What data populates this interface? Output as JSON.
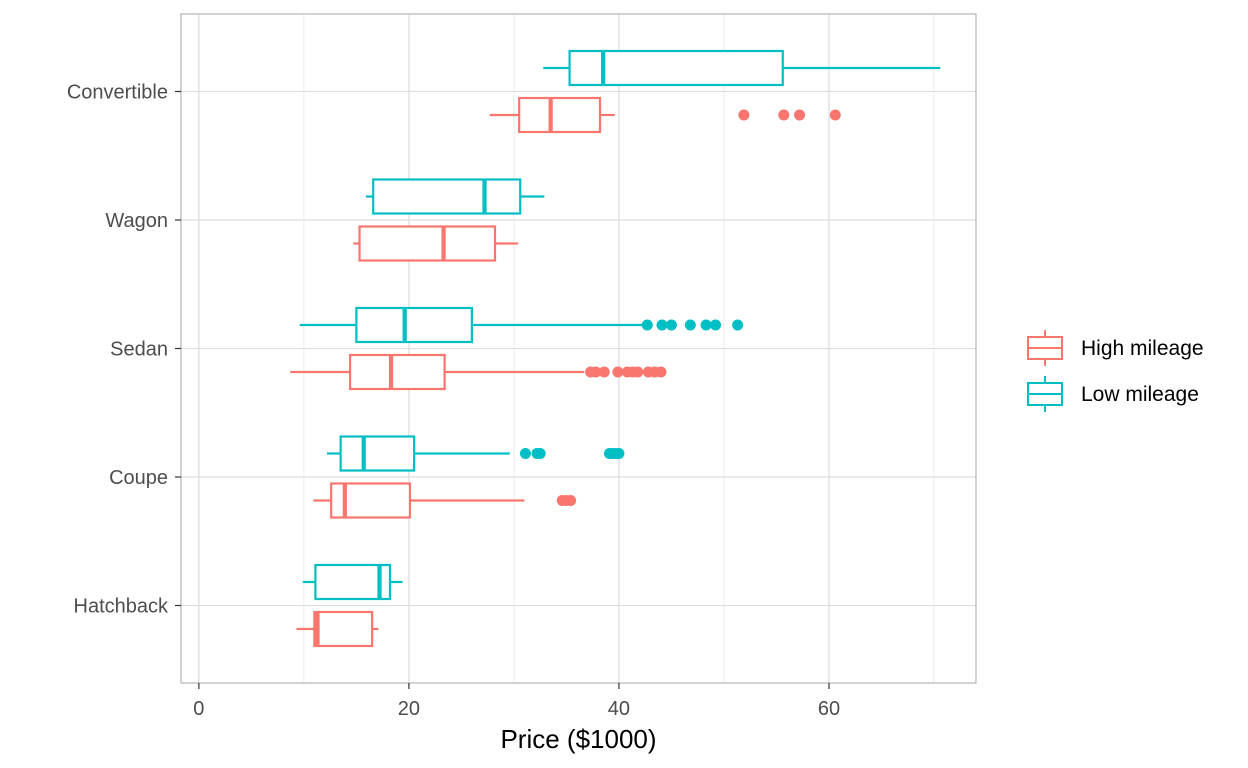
{
  "chart_data": {
    "type": "boxplot",
    "orientation": "horizontal",
    "title": "",
    "xlabel": "Price ($1000)",
    "ylabel": "",
    "xlim": [
      -1.7,
      74
    ],
    "x_ticks": [
      0,
      20,
      40,
      60
    ],
    "x_tick_labels": [
      "0",
      "20",
      "40",
      "60"
    ],
    "categories": [
      "Convertible",
      "Wagon",
      "Sedan",
      "Coupe",
      "Hatchback"
    ],
    "grid": true,
    "legend_position": "right",
    "series": [
      {
        "name": "High mileage",
        "color": "#F8766D",
        "boxes": [
          {
            "category": "Convertible",
            "whisker_low": 27.7,
            "q1": 30.5,
            "median": 33.5,
            "q3": 38.2,
            "whisker_high": 39.6,
            "outliers": [
              51.9,
              55.7,
              57.2,
              60.6
            ]
          },
          {
            "category": "Wagon",
            "whisker_low": 14.7,
            "q1": 15.3,
            "median": 23.3,
            "q3": 28.2,
            "whisker_high": 30.4,
            "outliers": []
          },
          {
            "category": "Sedan",
            "whisker_low": 8.7,
            "q1": 14.4,
            "median": 18.3,
            "q3": 23.4,
            "whisker_high": 36.7,
            "outliers": [
              37.3,
              37.8,
              38.6,
              39.9,
              40.8,
              41.3,
              41.8,
              42.8,
              43.4,
              44.0
            ]
          },
          {
            "category": "Coupe",
            "whisker_low": 10.9,
            "q1": 12.6,
            "median": 13.9,
            "q3": 20.1,
            "whisker_high": 31.0,
            "outliers": [
              34.6,
              35.0,
              35.4
            ]
          },
          {
            "category": "Hatchback",
            "whisker_low": 9.3,
            "q1": 11.0,
            "median": 11.3,
            "q3": 16.5,
            "whisker_high": 17.1,
            "outliers": []
          }
        ]
      },
      {
        "name": "Low mileage",
        "color": "#00BFC4",
        "boxes": [
          {
            "category": "Convertible",
            "whisker_low": 32.8,
            "q1": 35.3,
            "median": 38.5,
            "q3": 55.6,
            "whisker_high": 70.6,
            "outliers": []
          },
          {
            "category": "Wagon",
            "whisker_low": 15.9,
            "q1": 16.6,
            "median": 27.2,
            "q3": 30.6,
            "whisker_high": 32.9,
            "outliers": []
          },
          {
            "category": "Sedan",
            "whisker_low": 9.6,
            "q1": 15.0,
            "median": 19.6,
            "q3": 26.0,
            "whisker_high": 42.6,
            "outliers": [
              42.7,
              44.1,
              45.0,
              46.8,
              48.3,
              49.2,
              51.3
            ]
          },
          {
            "category": "Coupe",
            "whisker_low": 12.2,
            "q1": 13.5,
            "median": 15.7,
            "q3": 20.5,
            "whisker_high": 29.6,
            "outliers": [
              31.1,
              32.2,
              32.5,
              39.1,
              39.4,
              39.7,
              40.0
            ]
          },
          {
            "category": "Hatchback",
            "whisker_low": 9.9,
            "q1": 11.1,
            "median": 17.2,
            "q3": 18.2,
            "whisker_high": 19.4,
            "outliers": []
          }
        ]
      }
    ]
  }
}
